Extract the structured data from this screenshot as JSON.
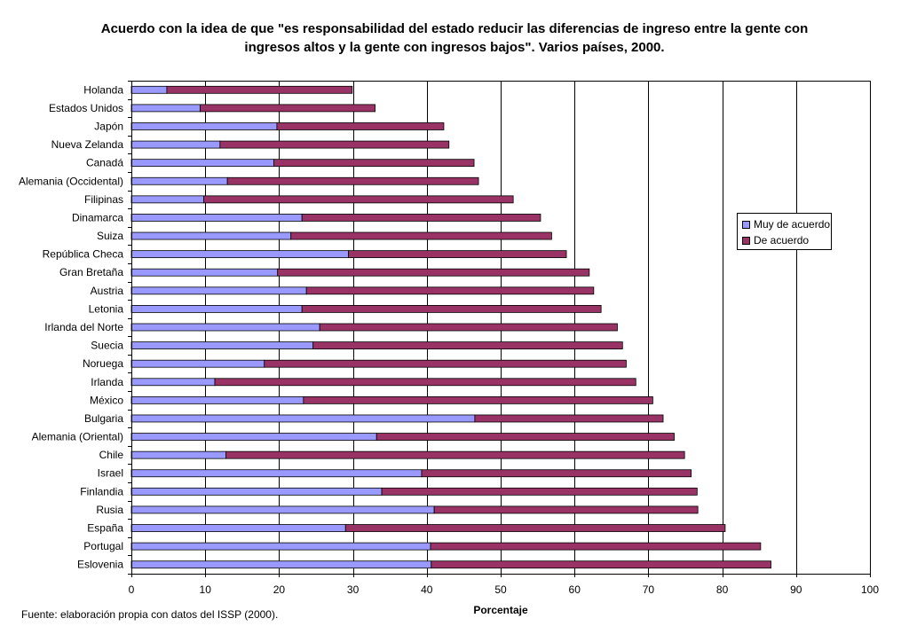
{
  "title_line1": "Acuerdo con la idea de que \"es responsabilidad del estado reducir las diferencias de ingreso entre la gente con",
  "title_line2": "ingresos altos y la gente con ingresos bajos\". Varios países, 2000.",
  "source_note": "Fuente: elaboración propia con datos del ISSP (2000).",
  "colors": {
    "muy": "#9999ff",
    "de": "#993366"
  },
  "chart_data": {
    "type": "bar",
    "orientation": "horizontal",
    "stacked": true,
    "xlabel": "Porcentaje",
    "xlim": [
      0,
      100
    ],
    "xticks": [
      0,
      10,
      20,
      30,
      40,
      50,
      60,
      70,
      80,
      90,
      100
    ],
    "grid": "vertical",
    "legend_position": "right",
    "categories": [
      "Holanda",
      "Estados Unidos",
      "Japón",
      "Nueva Zelanda",
      "Canadá",
      "Alemania (Occidental)",
      "Filipinas",
      "Dinamarca",
      "Suiza",
      "República Checa",
      "Gran Bretaña",
      "Austria",
      "Letonia",
      "Irlanda del Norte",
      "Suecia",
      "Noruega",
      "Irlanda",
      "México",
      "Bulgaria",
      "Alemania (Oriental)",
      "Chile",
      "Israel",
      "Finlandia",
      "Rusia",
      "España",
      "Portugal",
      "Eslovenia"
    ],
    "series": [
      {
        "name": "Muy de acuerdo",
        "values": [
          4.8,
          9.3,
          19.7,
          12.0,
          19.3,
          13.0,
          9.8,
          23.1,
          21.6,
          29.4,
          19.8,
          23.7,
          23.1,
          25.5,
          24.6,
          18.0,
          11.3,
          23.3,
          46.5,
          33.2,
          12.8,
          39.3,
          33.9,
          41.0,
          29.0,
          40.5,
          40.6
        ]
      },
      {
        "name": "De acuerdo",
        "values": [
          25.1,
          23.7,
          22.6,
          31.0,
          27.1,
          34.0,
          41.9,
          32.3,
          35.3,
          29.5,
          42.2,
          38.9,
          40.5,
          40.3,
          41.9,
          49.0,
          57.0,
          47.3,
          25.5,
          40.3,
          62.1,
          36.5,
          42.7,
          35.7,
          51.4,
          44.7,
          46.0
        ]
      }
    ]
  }
}
